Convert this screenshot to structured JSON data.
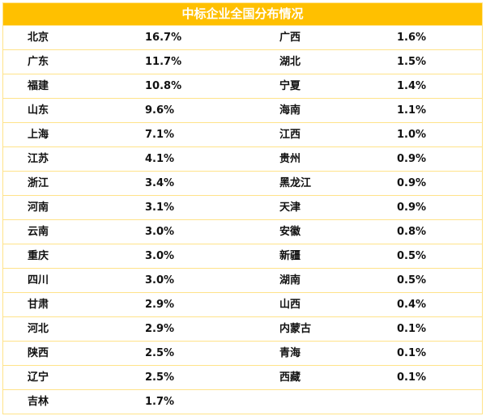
{
  "title": "中标企业全国分布情况",
  "accent_color": "#FFC000",
  "rows": [
    {
      "p1": "北京",
      "v1": "16.7%",
      "p2": "广西",
      "v2": "1.6%"
    },
    {
      "p1": "广东",
      "v1": "11.7%",
      "p2": "湖北",
      "v2": "1.5%"
    },
    {
      "p1": "福建",
      "v1": "10.8%",
      "p2": "宁夏",
      "v2": "1.4%"
    },
    {
      "p1": "山东",
      "v1": "9.6%",
      "p2": "海南",
      "v2": "1.1%"
    },
    {
      "p1": "上海",
      "v1": "7.1%",
      "p2": "江西",
      "v2": "1.0%"
    },
    {
      "p1": "江苏",
      "v1": "4.1%",
      "p2": "贵州",
      "v2": "0.9%"
    },
    {
      "p1": "浙江",
      "v1": "3.4%",
      "p2": "黑龙江",
      "v2": "0.9%"
    },
    {
      "p1": "河南",
      "v1": "3.1%",
      "p2": "天津",
      "v2": "0.9%"
    },
    {
      "p1": "云南",
      "v1": "3.0%",
      "p2": "安徽",
      "v2": "0.8%"
    },
    {
      "p1": "重庆",
      "v1": "3.0%",
      "p2": "新疆",
      "v2": "0.5%"
    },
    {
      "p1": "四川",
      "v1": "3.0%",
      "p2": "湖南",
      "v2": "0.5%"
    },
    {
      "p1": "甘肃",
      "v1": "2.9%",
      "p2": "山西",
      "v2": "0.4%"
    },
    {
      "p1": "河北",
      "v1": "2.9%",
      "p2": "内蒙古",
      "v2": "0.1%"
    },
    {
      "p1": "陕西",
      "v1": "2.5%",
      "p2": "青海",
      "v2": "0.1%"
    },
    {
      "p1": "辽宁",
      "v1": "2.5%",
      "p2": "西藏",
      "v2": "0.1%"
    },
    {
      "p1": "吉林",
      "v1": "1.7%",
      "p2": "",
      "v2": ""
    }
  ]
}
